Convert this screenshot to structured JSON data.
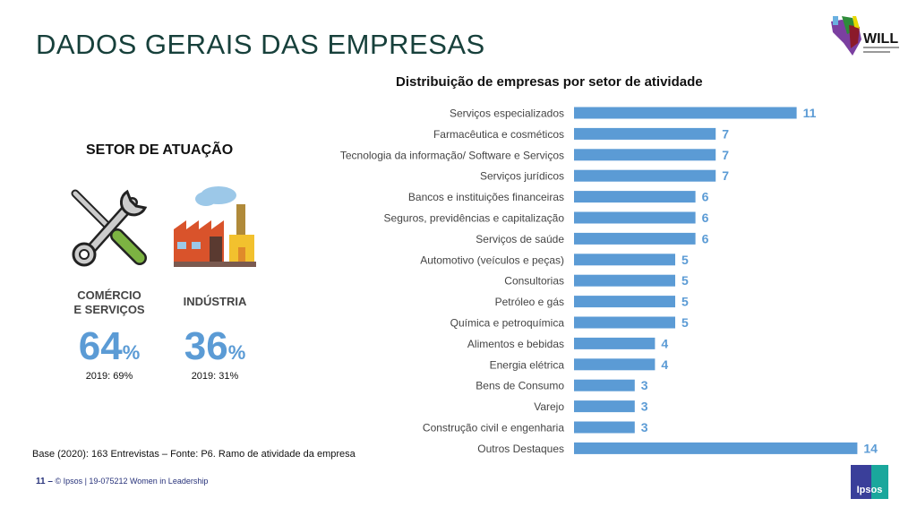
{
  "page_title": "DADOS GERAIS DAS EMPRESAS",
  "logo_text": "WILL",
  "sector": {
    "title": "SETOR DE ATUAÇÃO",
    "items": [
      {
        "label_line1": "COMÉRCIO",
        "label_line2": "E SERVIÇOS",
        "value": "64",
        "unit": "%",
        "previous": "2019: 69%"
      },
      {
        "label_line1": "INDÚSTRIA",
        "label_line2": "",
        "value": "36",
        "unit": "%",
        "previous": "2019: 31%"
      }
    ]
  },
  "chart_data": {
    "type": "bar",
    "orientation": "horizontal",
    "title": "Distribuição de empresas por setor de atividade",
    "categories": [
      "Serviços especializados",
      "Farmacêutica e cosméticos",
      "Tecnologia da informação/ Software e Serviços",
      "Serviços jurídicos",
      "Bancos e instituições financeiras",
      "Seguros, previdências e capitalização",
      "Serviços de saúde",
      "Automotivo (veículos e peças)",
      "Consultorias",
      "Petróleo e gás",
      "Química e petroquímica",
      "Alimentos e bebidas",
      "Energia elétrica",
      "Bens de Consumo",
      "Varejo",
      "Construção civil e engenharia",
      "Outros Destaques"
    ],
    "values": [
      11,
      7,
      7,
      7,
      6,
      6,
      6,
      5,
      5,
      5,
      5,
      4,
      4,
      3,
      3,
      3,
      14
    ],
    "xlim": [
      0,
      14
    ],
    "bar_color": "#5b9bd5",
    "label_color": "#5b9bd5"
  },
  "base_note": "Base (2020): 163 Entrevistas – Fonte: P6. Ramo de atividade da empresa",
  "footer": {
    "page": "11 –",
    "text": "© Ipsos | 19-075212 Women in Leadership"
  },
  "ipsos_logo": "Ipsos"
}
